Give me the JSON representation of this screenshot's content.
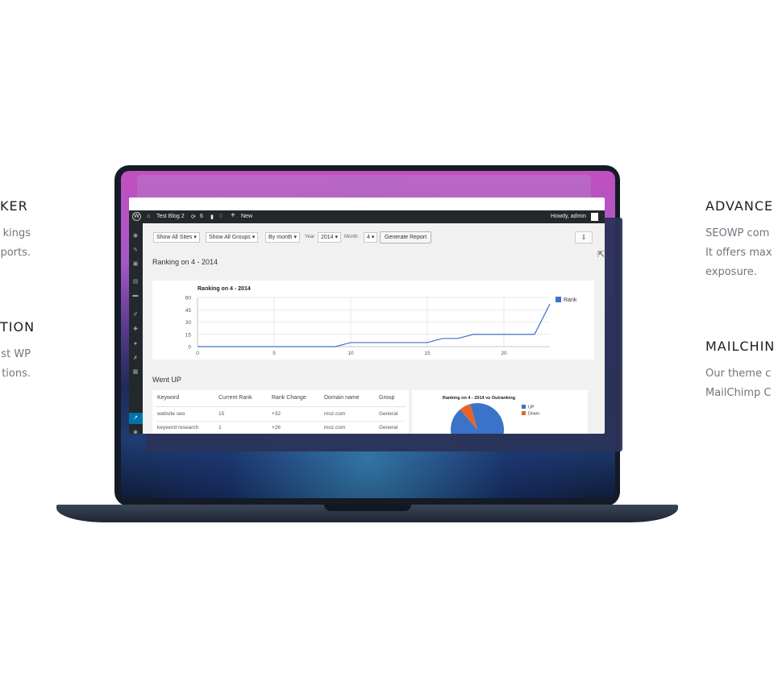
{
  "left_features": [
    {
      "title": "KER",
      "lines": [
        "kings",
        "ports."
      ]
    },
    {
      "title": "TION",
      "lines": [
        "st WP",
        "tions."
      ]
    }
  ],
  "right_features": [
    {
      "title": "ADVANCE",
      "lines": [
        "SEOWP com",
        "It offers max",
        "exposure."
      ]
    },
    {
      "title": "MAILCHIN",
      "lines": [
        "Our theme c",
        "MailChimp C"
      ]
    }
  ],
  "adminbar": {
    "site": "Test Blog 2",
    "updates": "6",
    "comments": "0",
    "new": "New",
    "howdy": "Howdy, admin"
  },
  "filters": {
    "sites": "Show All Sites",
    "groups": "Show All Groups",
    "period": "By month",
    "year_label": "Year",
    "year": "2014",
    "month_label": "Month",
    "month": "4",
    "generate": "Generate Report"
  },
  "report_title": "Ranking on 4 - 2014",
  "went_up_title": "Went UP",
  "table": {
    "headers": [
      "Keyword",
      "Current Rank",
      "Rank Change",
      "Domain name",
      "Group"
    ],
    "rows": [
      [
        "website seo",
        "15",
        "+32",
        "moz.com",
        "General"
      ],
      [
        "keyword research",
        "1",
        "+26",
        "moz.com",
        "General"
      ]
    ]
  },
  "chart_data": [
    {
      "type": "line",
      "title": "Ranking on 4 - 2014",
      "series": [
        {
          "name": "Rank",
          "x": [
            0,
            1,
            2,
            3,
            4,
            5,
            6,
            7,
            8,
            9,
            10,
            11,
            12,
            13,
            14,
            15,
            16,
            17,
            18,
            19,
            20,
            21,
            22,
            23
          ],
          "values": [
            0,
            0,
            0,
            0,
            0,
            0,
            0,
            0,
            0,
            0,
            5,
            5,
            5,
            5,
            5,
            5,
            10,
            10,
            15,
            15,
            15,
            15,
            15,
            52
          ]
        }
      ],
      "xticks": [
        "0",
        "5",
        "10",
        "15",
        "20"
      ],
      "yticks": [
        "0",
        "15",
        "30",
        "45",
        "60"
      ],
      "xlim": [
        0,
        23
      ],
      "ylim": [
        0,
        60
      ],
      "grid": true,
      "legend_position": "right",
      "color": "#3b73c8"
    },
    {
      "type": "pie",
      "title": "Ranking on 4 - 2014 vs Outranking",
      "labels": [
        "UP",
        "Down"
      ],
      "values": [
        93,
        7
      ],
      "colors": [
        "#3b73c8",
        "#e8632b"
      ],
      "legend_position": "right"
    }
  ]
}
